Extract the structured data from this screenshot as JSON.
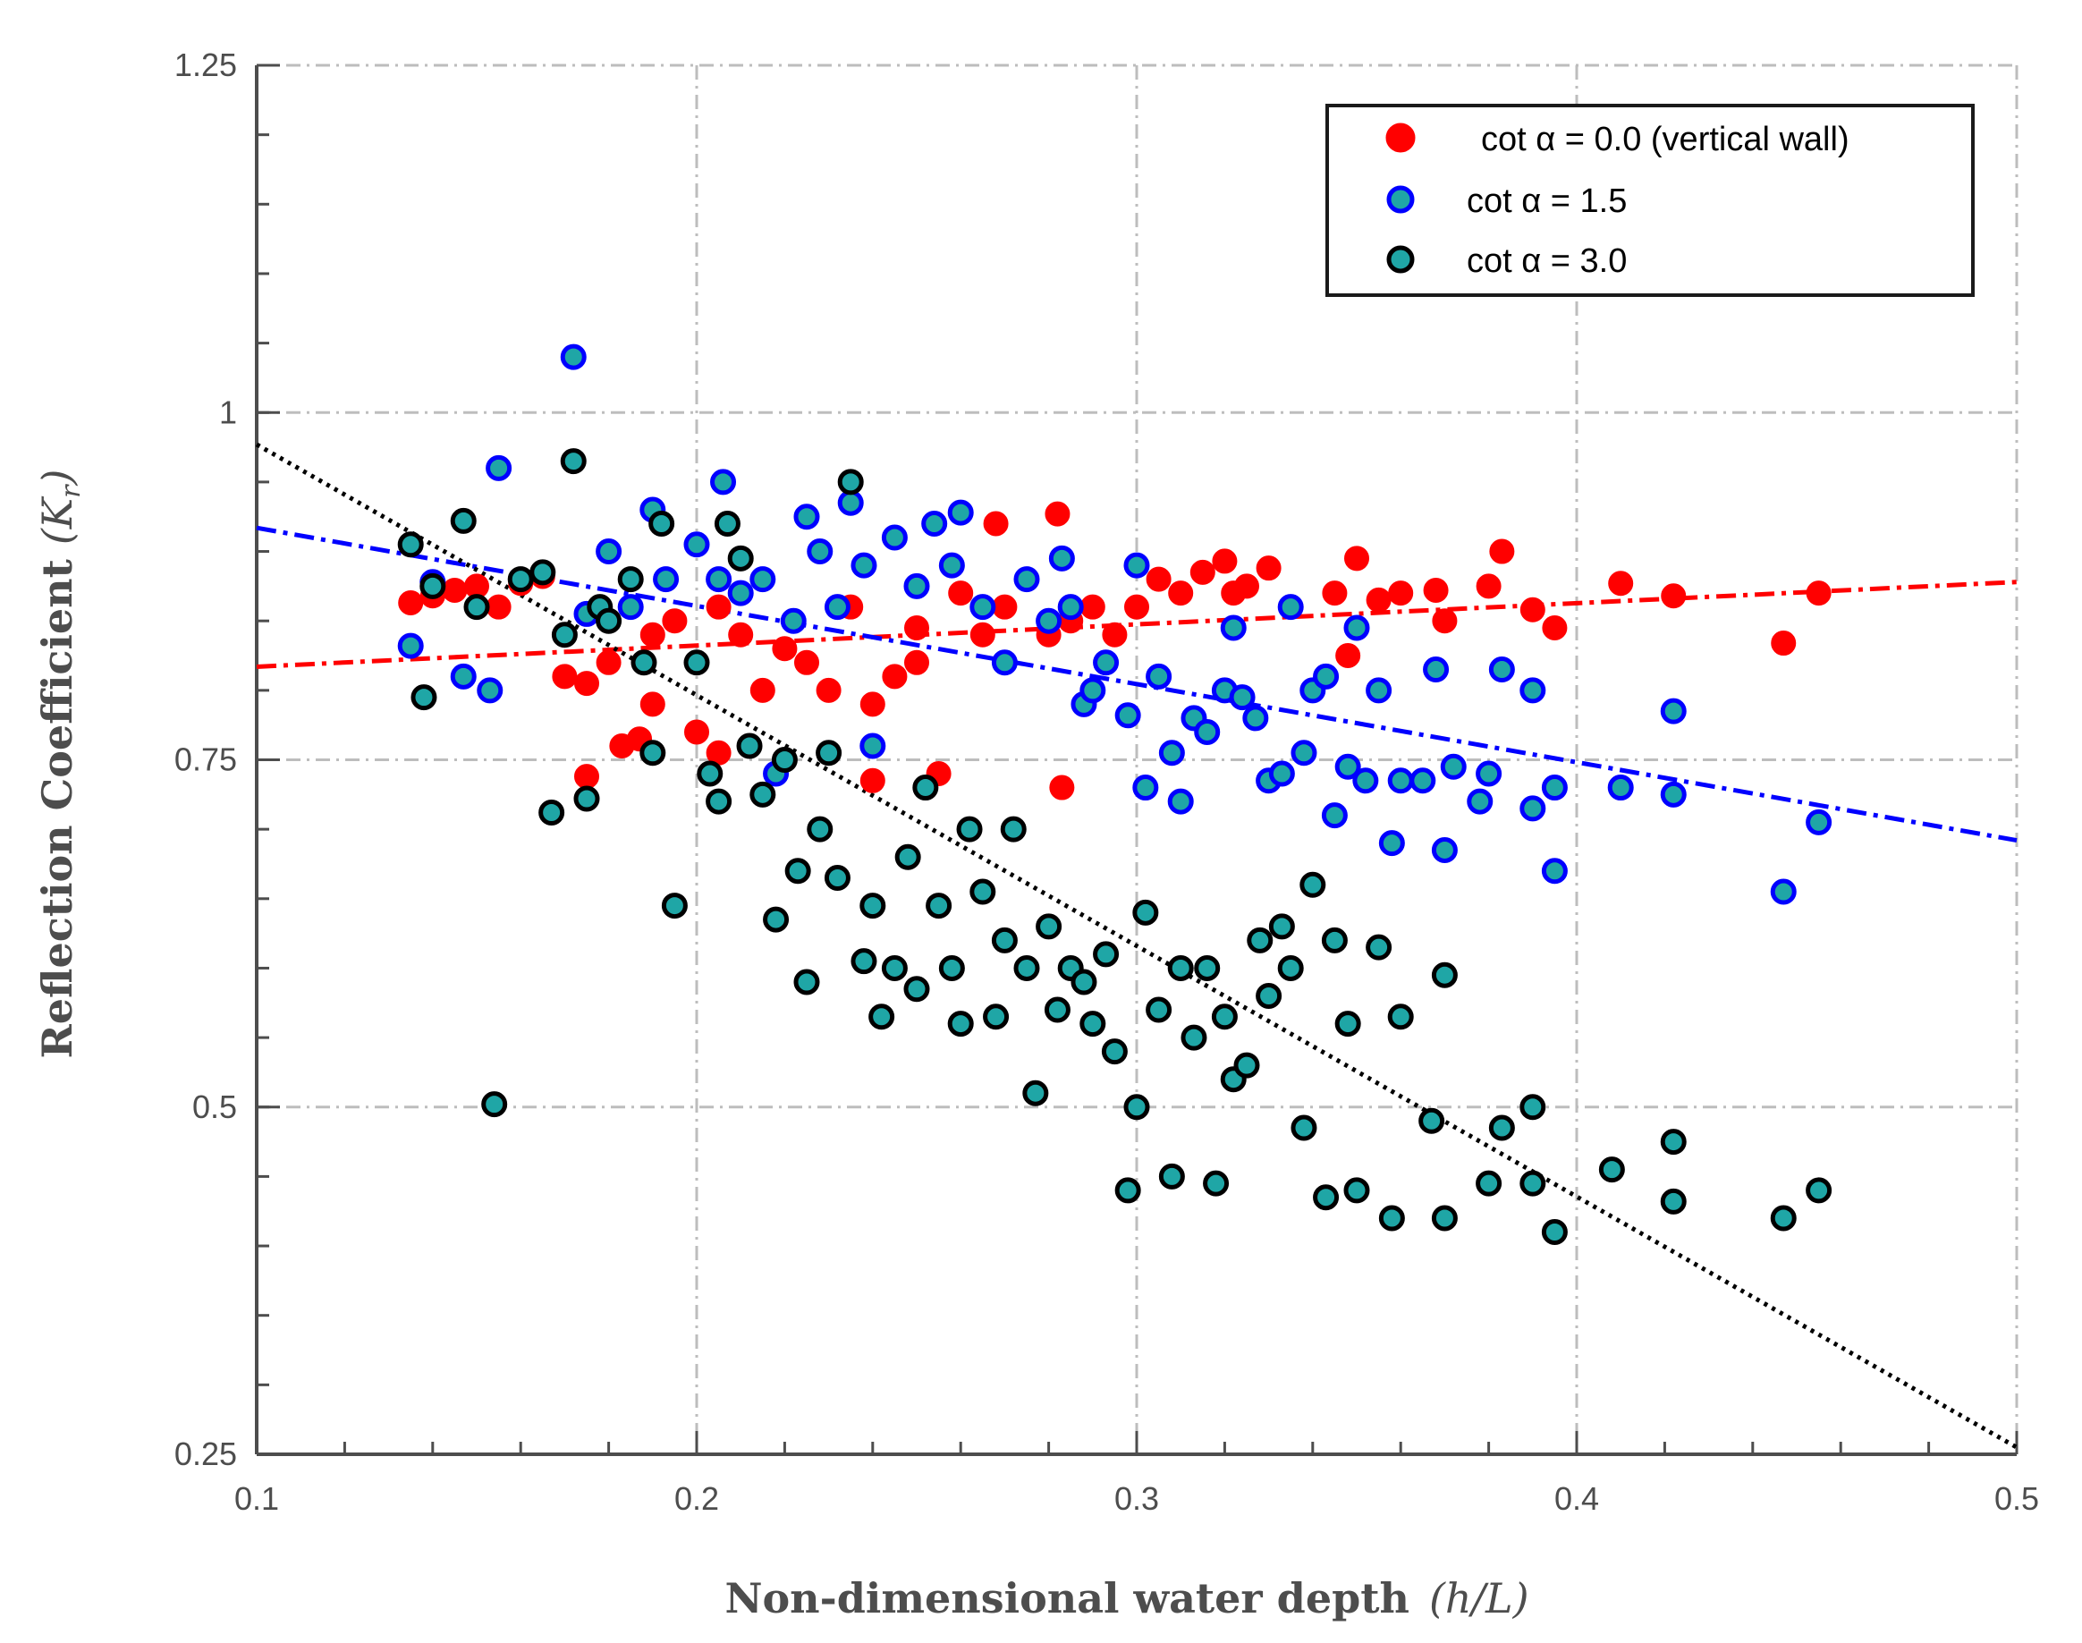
{
  "chart_data": {
    "type": "scatter",
    "xlabel": "Non-dimensional water depth",
    "xlabel_math": "(h/L)",
    "ylabel": "Reflection Coefficient",
    "ylabel_math": "(K",
    "ylabel_sub": "r",
    "ylabel_close": ")",
    "xlim": [
      0.1,
      0.5
    ],
    "ylim": [
      0.25,
      1.25
    ],
    "xticks": [
      0.1,
      0.2,
      0.3,
      0.4,
      0.5
    ],
    "xtick_labels": [
      "0.1",
      "0.2",
      "0.3",
      "0.4",
      "0.5"
    ],
    "yticks": [
      0.25,
      0.5,
      0.75,
      1.0,
      1.25
    ],
    "ytick_labels": [
      "0.25",
      "0.5",
      "0.75",
      "1",
      "1.25"
    ],
    "grid": true,
    "legend_position": "top-right",
    "series": [
      {
        "name": "cot α = 0.0 (vertical wall)",
        "marker_fill": "#ff0000",
        "marker_edge": "#ff0000",
        "trend": {
          "x": [
            0.1,
            0.5
          ],
          "y": [
            0.817,
            0.878
          ],
          "color": "#ff0000",
          "style": "dashdot"
        },
        "points": [
          [
            0.135,
            0.863
          ],
          [
            0.14,
            0.868
          ],
          [
            0.145,
            0.872
          ],
          [
            0.15,
            0.875
          ],
          [
            0.155,
            0.86
          ],
          [
            0.16,
            0.877
          ],
          [
            0.165,
            0.882
          ],
          [
            0.17,
            0.81
          ],
          [
            0.175,
            0.738
          ],
          [
            0.175,
            0.805
          ],
          [
            0.18,
            0.82
          ],
          [
            0.183,
            0.76
          ],
          [
            0.187,
            0.765
          ],
          [
            0.19,
            0.79
          ],
          [
            0.19,
            0.84
          ],
          [
            0.195,
            0.85
          ],
          [
            0.2,
            0.77
          ],
          [
            0.2,
            0.82
          ],
          [
            0.205,
            0.755
          ],
          [
            0.205,
            0.86
          ],
          [
            0.21,
            0.84
          ],
          [
            0.215,
            0.8
          ],
          [
            0.22,
            0.83
          ],
          [
            0.225,
            0.82
          ],
          [
            0.23,
            0.8
          ],
          [
            0.235,
            0.86
          ],
          [
            0.24,
            0.79
          ],
          [
            0.24,
            0.735
          ],
          [
            0.245,
            0.81
          ],
          [
            0.25,
            0.845
          ],
          [
            0.25,
            0.82
          ],
          [
            0.255,
            0.74
          ],
          [
            0.26,
            0.87
          ],
          [
            0.265,
            0.84
          ],
          [
            0.268,
            0.92
          ],
          [
            0.27,
            0.86
          ],
          [
            0.275,
            0.88
          ],
          [
            0.28,
            0.84
          ],
          [
            0.282,
            0.927
          ],
          [
            0.283,
            0.73
          ],
          [
            0.285,
            0.85
          ],
          [
            0.29,
            0.86
          ],
          [
            0.295,
            0.84
          ],
          [
            0.3,
            0.86
          ],
          [
            0.305,
            0.88
          ],
          [
            0.31,
            0.87
          ],
          [
            0.315,
            0.885
          ],
          [
            0.32,
            0.893
          ],
          [
            0.322,
            0.87
          ],
          [
            0.325,
            0.875
          ],
          [
            0.33,
            0.888
          ],
          [
            0.335,
            0.86
          ],
          [
            0.345,
            0.87
          ],
          [
            0.348,
            0.825
          ],
          [
            0.35,
            0.895
          ],
          [
            0.355,
            0.865
          ],
          [
            0.36,
            0.87
          ],
          [
            0.368,
            0.872
          ],
          [
            0.37,
            0.85
          ],
          [
            0.38,
            0.875
          ],
          [
            0.383,
            0.9
          ],
          [
            0.39,
            0.858
          ],
          [
            0.395,
            0.845
          ],
          [
            0.41,
            0.877
          ],
          [
            0.422,
            0.868
          ],
          [
            0.447,
            0.834
          ],
          [
            0.455,
            0.87
          ]
        ]
      },
      {
        "name": "cot α = 1.5",
        "marker_fill": "#1fa6a6",
        "marker_edge": "#0000ff",
        "trend": {
          "x": [
            0.1,
            0.5
          ],
          "y": [
            0.917,
            0.692
          ],
          "color": "#0000ff",
          "style": "dashdot"
        },
        "points": [
          [
            0.135,
            0.832
          ],
          [
            0.14,
            0.878
          ],
          [
            0.147,
            0.81
          ],
          [
            0.153,
            0.8
          ],
          [
            0.155,
            0.96
          ],
          [
            0.172,
            1.04
          ],
          [
            0.175,
            0.855
          ],
          [
            0.18,
            0.9
          ],
          [
            0.185,
            0.86
          ],
          [
            0.19,
            0.93
          ],
          [
            0.193,
            0.88
          ],
          [
            0.2,
            0.905
          ],
          [
            0.205,
            0.88
          ],
          [
            0.206,
            0.95
          ],
          [
            0.21,
            0.87
          ],
          [
            0.215,
            0.88
          ],
          [
            0.218,
            0.74
          ],
          [
            0.222,
            0.85
          ],
          [
            0.225,
            0.925
          ],
          [
            0.228,
            0.9
          ],
          [
            0.232,
            0.86
          ],
          [
            0.235,
            0.935
          ],
          [
            0.238,
            0.89
          ],
          [
            0.24,
            0.76
          ],
          [
            0.245,
            0.91
          ],
          [
            0.25,
            0.875
          ],
          [
            0.254,
            0.92
          ],
          [
            0.258,
            0.89
          ],
          [
            0.26,
            0.928
          ],
          [
            0.265,
            0.86
          ],
          [
            0.27,
            0.82
          ],
          [
            0.275,
            0.88
          ],
          [
            0.28,
            0.85
          ],
          [
            0.283,
            0.895
          ],
          [
            0.285,
            0.86
          ],
          [
            0.288,
            0.79
          ],
          [
            0.29,
            0.8
          ],
          [
            0.293,
            0.82
          ],
          [
            0.298,
            0.782
          ],
          [
            0.3,
            0.89
          ],
          [
            0.302,
            0.73
          ],
          [
            0.305,
            0.81
          ],
          [
            0.308,
            0.755
          ],
          [
            0.31,
            0.72
          ],
          [
            0.313,
            0.78
          ],
          [
            0.316,
            0.77
          ],
          [
            0.32,
            0.8
          ],
          [
            0.322,
            0.845
          ],
          [
            0.324,
            0.795
          ],
          [
            0.327,
            0.78
          ],
          [
            0.33,
            0.735
          ],
          [
            0.333,
            0.74
          ],
          [
            0.335,
            0.86
          ],
          [
            0.338,
            0.755
          ],
          [
            0.34,
            0.8
          ],
          [
            0.343,
            0.81
          ],
          [
            0.345,
            0.71
          ],
          [
            0.348,
            0.745
          ],
          [
            0.35,
            0.845
          ],
          [
            0.352,
            0.735
          ],
          [
            0.355,
            0.8
          ],
          [
            0.358,
            0.69
          ],
          [
            0.36,
            0.735
          ],
          [
            0.365,
            0.735
          ],
          [
            0.368,
            0.815
          ],
          [
            0.37,
            0.685
          ],
          [
            0.372,
            0.745
          ],
          [
            0.378,
            0.72
          ],
          [
            0.38,
            0.74
          ],
          [
            0.383,
            0.815
          ],
          [
            0.39,
            0.8
          ],
          [
            0.39,
            0.715
          ],
          [
            0.395,
            0.67
          ],
          [
            0.395,
            0.73
          ],
          [
            0.41,
            0.73
          ],
          [
            0.422,
            0.785
          ],
          [
            0.422,
            0.725
          ],
          [
            0.447,
            0.655
          ],
          [
            0.455,
            0.705
          ]
        ]
      },
      {
        "name": "cot α = 3.0",
        "marker_fill": "#1fa6a6",
        "marker_edge": "#000000",
        "trend": {
          "x": [
            0.1,
            0.5
          ],
          "y": [
            0.977,
            0.255
          ],
          "color": "#000000",
          "style": "dotted"
        },
        "points": [
          [
            0.135,
            0.905
          ],
          [
            0.138,
            0.795
          ],
          [
            0.14,
            0.875
          ],
          [
            0.147,
            0.922
          ],
          [
            0.15,
            0.86
          ],
          [
            0.154,
            0.502
          ],
          [
            0.16,
            0.88
          ],
          [
            0.165,
            0.885
          ],
          [
            0.167,
            0.712
          ],
          [
            0.17,
            0.84
          ],
          [
            0.172,
            0.965
          ],
          [
            0.175,
            0.722
          ],
          [
            0.178,
            0.86
          ],
          [
            0.18,
            0.85
          ],
          [
            0.185,
            0.88
          ],
          [
            0.188,
            0.82
          ],
          [
            0.19,
            0.755
          ],
          [
            0.192,
            0.92
          ],
          [
            0.195,
            0.645
          ],
          [
            0.2,
            0.82
          ],
          [
            0.203,
            0.74
          ],
          [
            0.205,
            0.72
          ],
          [
            0.207,
            0.92
          ],
          [
            0.21,
            0.895
          ],
          [
            0.212,
            0.76
          ],
          [
            0.215,
            0.725
          ],
          [
            0.218,
            0.635
          ],
          [
            0.22,
            0.75
          ],
          [
            0.223,
            0.67
          ],
          [
            0.225,
            0.59
          ],
          [
            0.228,
            0.7
          ],
          [
            0.23,
            0.755
          ],
          [
            0.232,
            0.665
          ],
          [
            0.235,
            0.95
          ],
          [
            0.238,
            0.605
          ],
          [
            0.24,
            0.645
          ],
          [
            0.242,
            0.565
          ],
          [
            0.245,
            0.6
          ],
          [
            0.248,
            0.68
          ],
          [
            0.25,
            0.585
          ],
          [
            0.252,
            0.73
          ],
          [
            0.255,
            0.645
          ],
          [
            0.258,
            0.6
          ],
          [
            0.26,
            0.56
          ],
          [
            0.262,
            0.7
          ],
          [
            0.265,
            0.655
          ],
          [
            0.268,
            0.565
          ],
          [
            0.27,
            0.62
          ],
          [
            0.272,
            0.7
          ],
          [
            0.275,
            0.6
          ],
          [
            0.277,
            0.51
          ],
          [
            0.28,
            0.63
          ],
          [
            0.282,
            0.57
          ],
          [
            0.285,
            0.6
          ],
          [
            0.288,
            0.59
          ],
          [
            0.29,
            0.56
          ],
          [
            0.293,
            0.61
          ],
          [
            0.295,
            0.54
          ],
          [
            0.298,
            0.44
          ],
          [
            0.3,
            0.5
          ],
          [
            0.302,
            0.64
          ],
          [
            0.305,
            0.57
          ],
          [
            0.308,
            0.45
          ],
          [
            0.31,
            0.6
          ],
          [
            0.313,
            0.55
          ],
          [
            0.316,
            0.6
          ],
          [
            0.318,
            0.445
          ],
          [
            0.32,
            0.565
          ],
          [
            0.322,
            0.52
          ],
          [
            0.325,
            0.53
          ],
          [
            0.328,
            0.62
          ],
          [
            0.33,
            0.58
          ],
          [
            0.333,
            0.63
          ],
          [
            0.335,
            0.6
          ],
          [
            0.338,
            0.485
          ],
          [
            0.34,
            0.66
          ],
          [
            0.343,
            0.435
          ],
          [
            0.345,
            0.62
          ],
          [
            0.348,
            0.56
          ],
          [
            0.35,
            0.44
          ],
          [
            0.355,
            0.615
          ],
          [
            0.358,
            0.42
          ],
          [
            0.36,
            0.565
          ],
          [
            0.367,
            0.49
          ],
          [
            0.37,
            0.42
          ],
          [
            0.37,
            0.595
          ],
          [
            0.38,
            0.445
          ],
          [
            0.383,
            0.485
          ],
          [
            0.39,
            0.445
          ],
          [
            0.39,
            0.5
          ],
          [
            0.395,
            0.41
          ],
          [
            0.408,
            0.455
          ],
          [
            0.422,
            0.475
          ],
          [
            0.422,
            0.432
          ],
          [
            0.447,
            0.42
          ],
          [
            0.455,
            0.44
          ]
        ]
      }
    ]
  }
}
